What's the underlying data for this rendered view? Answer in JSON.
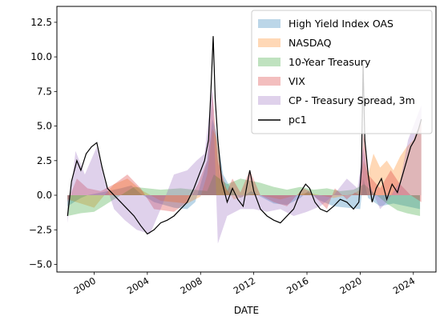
{
  "chart_data": {
    "type": "area",
    "xlabel": "DATE",
    "ylabel": "",
    "title": "",
    "xlim": [
      1997.2,
      2025.7
    ],
    "ylim": [
      -5.55,
      13.65
    ],
    "x_ticks": [
      2000,
      2004,
      2008,
      2012,
      2016,
      2020,
      2024
    ],
    "x_tick_labels": [
      "2000",
      "2004",
      "2008",
      "2012",
      "2016",
      "2020",
      "2024"
    ],
    "y_ticks": [
      -5.0,
      -2.5,
      0.0,
      2.5,
      5.0,
      7.5,
      10.0,
      12.5
    ],
    "y_tick_labels": [
      "−5.0",
      "−2.5",
      "0.0",
      "2.5",
      "5.0",
      "7.5",
      "10.0",
      "12.5"
    ],
    "grid": false,
    "legend_position": "top-right",
    "series": [
      {
        "name": "High Yield Index OAS",
        "kind": "area",
        "color": "#1f77b4",
        "x": [
          1998.0,
          1998.5,
          1999.0,
          1999.5,
          2000.0,
          2001.0,
          2002.0,
          2002.8,
          2003.5,
          2004.5,
          2006.0,
          2007.0,
          2007.6,
          2008.0,
          2008.5,
          2008.9,
          2009.2,
          2009.7,
          2010.5,
          2011.0,
          2011.8,
          2012.5,
          2013.5,
          2014.5,
          2015.5,
          2016.1,
          2016.8,
          2018.0,
          2019.0,
          2020.0,
          2020.25,
          2020.6,
          2021.5,
          2022.5,
          2023.5,
          2024.5
        ],
        "values": [
          -0.8,
          -0.5,
          -0.2,
          0.0,
          0.1,
          0.3,
          0.5,
          0.7,
          0.1,
          -0.5,
          -0.9,
          -1.0,
          -0.5,
          0.8,
          2.5,
          5.5,
          4.5,
          1.5,
          0.1,
          -0.2,
          0.3,
          -0.1,
          -0.6,
          -0.7,
          -0.2,
          0.3,
          -0.3,
          -0.8,
          -0.9,
          -1.0,
          1.2,
          -0.2,
          -0.8,
          -0.6,
          -0.8,
          -1.0
        ]
      },
      {
        "name": "NASDAQ",
        "kind": "area",
        "color": "#ff7f0e",
        "x": [
          1998.0,
          1999.0,
          2000.0,
          2000.5,
          2001.5,
          2002.5,
          2003.5,
          2005.0,
          2007.0,
          2008.0,
          2008.5,
          2008.9,
          2009.2,
          2009.7,
          2010.5,
          2012.0,
          2014.0,
          2016.0,
          2018.0,
          2019.5,
          2020.0,
          2020.25,
          2020.6,
          2021.0,
          2021.5,
          2022.0,
          2022.5,
          2023.0,
          2023.5,
          2024.0,
          2024.6
        ],
        "values": [
          -0.3,
          -0.6,
          -0.9,
          -0.3,
          0.8,
          1.2,
          0.4,
          -0.4,
          -0.6,
          -0.1,
          1.5,
          4.8,
          4.2,
          0.8,
          -0.3,
          0.1,
          -0.3,
          0.2,
          -0.2,
          0.1,
          0.4,
          2.5,
          1.5,
          3.0,
          2.0,
          2.5,
          1.8,
          2.8,
          3.5,
          4.0,
          5.5
        ]
      },
      {
        "name": "10-Year Treasury",
        "kind": "area",
        "color": "#2ca02c",
        "x": [
          1998.0,
          1999.0,
          2000.0,
          2001.0,
          2002.0,
          2003.0,
          2004.0,
          2005.0,
          2006.5,
          2007.5,
          2008.5,
          2009.0,
          2010.0,
          2011.0,
          2012.5,
          2013.5,
          2014.5,
          2015.5,
          2016.5,
          2017.5,
          2018.5,
          2019.5,
          2020.3,
          2021.0,
          2022.0,
          2022.8,
          2023.5,
          2024.5
        ],
        "values": [
          -1.5,
          -1.3,
          -1.2,
          -0.6,
          0.0,
          0.6,
          0.5,
          0.4,
          0.5,
          0.4,
          0.3,
          1.5,
          0.8,
          1.2,
          0.9,
          0.6,
          0.4,
          0.6,
          0.4,
          0.5,
          0.3,
          0.4,
          0.8,
          0.2,
          -0.6,
          -1.1,
          -1.3,
          -1.5
        ]
      },
      {
        "name": "VIX",
        "kind": "area",
        "color": "#d62728",
        "x": [
          1998.0,
          1998.7,
          1999.5,
          2000.5,
          2001.5,
          2002.5,
          2003.5,
          2004.5,
          2006.0,
          2007.0,
          2007.8,
          2008.5,
          2008.9,
          2009.3,
          2010.0,
          2010.4,
          2011.0,
          2011.7,
          2012.5,
          2013.5,
          2014.5,
          2015.7,
          2016.2,
          2017.5,
          2018.1,
          2019.0,
          2019.6,
          2020.0,
          2020.25,
          2020.6,
          2021.5,
          2022.3,
          2023.0,
          2023.8,
          2024.6
        ],
        "values": [
          -0.5,
          1.2,
          0.5,
          0.3,
          0.8,
          1.5,
          0.5,
          -1.0,
          -1.2,
          -0.5,
          0.8,
          2.5,
          7.5,
          2.5,
          0.3,
          1.2,
          0.2,
          1.8,
          0.0,
          -0.5,
          -0.8,
          0.5,
          0.3,
          -1.0,
          0.5,
          -0.3,
          0.2,
          0.0,
          4.5,
          1.5,
          0.5,
          1.8,
          0.8,
          0.0,
          -0.5
        ]
      },
      {
        "name": "CP - Treasury Spread, 3m",
        "kind": "area",
        "color": "#9467bd",
        "x": [
          1998.0,
          1998.6,
          1999.3,
          2000.2,
          2000.8,
          2001.5,
          2002.3,
          2003.2,
          2004.2,
          2005.0,
          2006.0,
          2007.0,
          2007.7,
          2008.3,
          2008.9,
          2009.3,
          2010.0,
          2011.0,
          2012.0,
          2013.0,
          2014.0,
          2015.0,
          2016.0,
          2017.0,
          2018.0,
          2019.0,
          2019.8,
          2020.25,
          2020.6,
          2021.5,
          2022.0,
          2023.0,
          2023.6,
          2024.2,
          2024.6
        ],
        "values": [
          -2.0,
          3.2,
          1.5,
          3.5,
          1.0,
          -1.0,
          -1.8,
          -2.5,
          -2.8,
          -1.0,
          1.5,
          1.8,
          2.5,
          3.0,
          8.0,
          -3.5,
          -1.5,
          -1.0,
          -1.0,
          -1.2,
          -1.0,
          -1.5,
          -1.2,
          -0.8,
          0.0,
          1.2,
          0.5,
          3.5,
          1.0,
          -1.0,
          -0.5,
          1.0,
          4.0,
          5.5,
          6.5
        ]
      },
      {
        "name": "pc1",
        "kind": "line",
        "color": "#000000",
        "x": [
          1998.0,
          1998.3,
          1998.7,
          1999.0,
          1999.4,
          1999.8,
          2000.2,
          2000.6,
          2001.0,
          2001.5,
          2002.0,
          2002.5,
          2003.0,
          2003.5,
          2004.0,
          2004.5,
          2005.0,
          2005.5,
          2006.0,
          2006.5,
          2007.0,
          2007.5,
          2007.9,
          2008.3,
          2008.6,
          2008.8,
          2008.95,
          2009.1,
          2009.3,
          2009.6,
          2010.0,
          2010.4,
          2010.8,
          2011.2,
          2011.7,
          2012.0,
          2012.5,
          2013.0,
          2013.5,
          2014.0,
          2014.5,
          2015.0,
          2015.5,
          2015.9,
          2016.2,
          2016.6,
          2017.0,
          2017.5,
          2018.0,
          2018.5,
          2019.0,
          2019.5,
          2019.9,
          2020.1,
          2020.22,
          2020.35,
          2020.6,
          2020.9,
          2021.2,
          2021.6,
          2022.0,
          2022.4,
          2022.8,
          2023.2,
          2023.5,
          2023.8,
          2024.1,
          2024.4,
          2024.6
        ],
        "values": [
          -1.5,
          1.0,
          2.5,
          1.8,
          3.0,
          3.5,
          3.8,
          2.0,
          0.5,
          0.0,
          -0.5,
          -1.0,
          -1.5,
          -2.2,
          -2.8,
          -2.5,
          -2.0,
          -1.8,
          -1.5,
          -1.0,
          -0.5,
          0.5,
          1.5,
          2.5,
          4.0,
          8.0,
          11.5,
          7.0,
          4.0,
          1.0,
          -0.5,
          0.5,
          -0.3,
          -0.8,
          1.8,
          0.3,
          -1.0,
          -1.5,
          -1.8,
          -2.0,
          -1.5,
          -1.0,
          0.2,
          0.8,
          0.5,
          -0.5,
          -1.0,
          -1.2,
          -0.8,
          -0.3,
          -0.5,
          -1.0,
          -0.5,
          2.0,
          9.5,
          4.0,
          1.5,
          -0.5,
          0.5,
          1.2,
          -0.3,
          0.8,
          0.2,
          1.5,
          2.5,
          3.5,
          4.0,
          4.8,
          5.5
        ]
      }
    ]
  }
}
